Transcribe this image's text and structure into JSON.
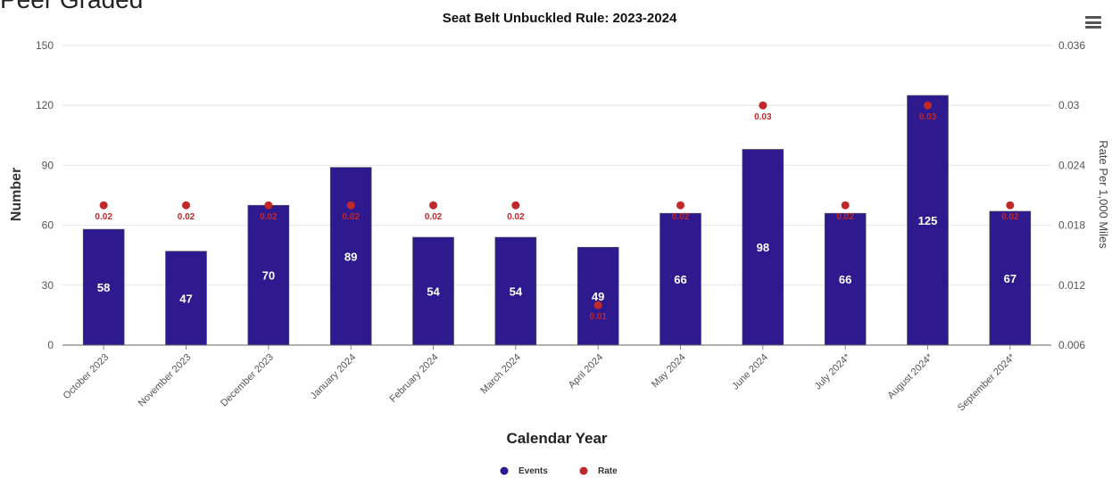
{
  "page": {
    "heading": "Peer Graded"
  },
  "chart_data": {
    "type": "bar",
    "title": "Seat Belt Unbuckled Rule: 2023-2024",
    "xlabel": "Calendar Year",
    "ylabel": "Number",
    "y2label": "Rate Per 1,000 Miles",
    "ylim": [
      0,
      150
    ],
    "yticks": [
      0,
      30,
      60,
      90,
      120,
      150
    ],
    "y2lim": [
      0.006,
      0.036
    ],
    "y2ticks": [
      "0.006",
      "0.012",
      "0.018",
      "0.024",
      "0.03",
      "0.036"
    ],
    "categories": [
      "October 2023",
      "November 2023",
      "December 2023",
      "January 2024",
      "February 2024",
      "March 2024",
      "April 2024",
      "May 2024",
      "June 2024",
      "July 2024*",
      "August 2024*",
      "September 2024*"
    ],
    "series": [
      {
        "name": "Events",
        "type": "bar",
        "axis": "left",
        "color": "#2e1a8e",
        "values": [
          58,
          47,
          70,
          89,
          54,
          54,
          49,
          66,
          98,
          66,
          125,
          67
        ]
      },
      {
        "name": "Rate",
        "type": "scatter",
        "axis": "right",
        "color": "#c0282a",
        "values": [
          0.02,
          0.02,
          0.02,
          0.02,
          0.02,
          0.02,
          0.01,
          0.02,
          0.03,
          0.02,
          0.03,
          0.02
        ]
      }
    ],
    "grid": true,
    "legend": "bottom-center"
  }
}
